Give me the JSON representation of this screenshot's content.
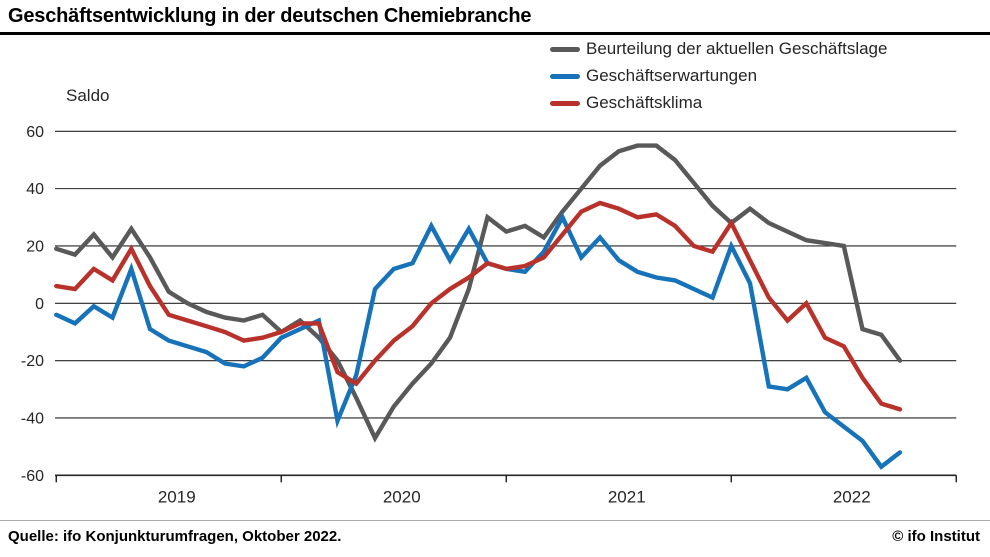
{
  "title": "Geschäftsentwicklung in der deutschen Chemiebranche",
  "ylabel": "Saldo",
  "source": "Quelle: ifo Konjunkturumfragen, Oktober 2022.",
  "credit": "© ifo Institut",
  "colors": {
    "lage": "#595959",
    "erwartungen": "#1673b9",
    "klima": "#b8322b",
    "grid": "#262626",
    "axis": "#1a1a1a"
  },
  "legend": [
    {
      "key": "lage",
      "label": "Beurteilung der aktuellen Geschäftslage",
      "color": "#595959"
    },
    {
      "key": "erwartungen",
      "label": "Geschäftserwartungen",
      "color": "#1673b9"
    },
    {
      "key": "klima",
      "label": "Geschäftsklima",
      "color": "#b8322b"
    }
  ],
  "chart_data": {
    "type": "line",
    "title": "Geschäftsentwicklung in der deutschen Chemiebranche",
    "ylabel": "Saldo",
    "frequency": "monthly",
    "x_start": "2019-01",
    "x_end": "2022-10",
    "ylim": [
      -60,
      60
    ],
    "grid": true,
    "legend_position": "top-right",
    "y_ticks": [
      60,
      40,
      20,
      0,
      -20,
      -40,
      -60
    ],
    "x_tick_years": [
      "2019",
      "2020",
      "2021",
      "2022"
    ],
    "series": [
      {
        "name": "Beurteilung der aktuellen Geschäftslage",
        "color": "#595959",
        "values": [
          19,
          17,
          24,
          16,
          26,
          16,
          4,
          0,
          -3,
          -5,
          -6,
          -4,
          -10,
          -6,
          -12,
          -20,
          -33,
          -47,
          -36,
          -28,
          -21,
          -12,
          5,
          30,
          25,
          27,
          23,
          32,
          40,
          48,
          53,
          55,
          55,
          50,
          42,
          34,
          28,
          33,
          28,
          25,
          22,
          21,
          20,
          -9,
          -11,
          -20
        ]
      },
      {
        "name": "Geschäftserwartungen",
        "color": "#1673b9",
        "values": [
          -4,
          -7,
          -1,
          -5,
          12,
          -9,
          -13,
          -15,
          -17,
          -21,
          -22,
          -19,
          -12,
          -9,
          -6,
          -41,
          -25,
          5,
          12,
          14,
          27,
          15,
          26,
          14,
          12,
          11,
          18,
          30,
          16,
          23,
          15,
          11,
          9,
          8,
          5,
          2,
          20,
          7,
          -29,
          -30,
          -26,
          -38,
          -43,
          -48,
          -57,
          -52
        ]
      },
      {
        "name": "Geschäftsklima",
        "color": "#b8322b",
        "values": [
          6,
          5,
          12,
          8,
          19,
          6,
          -4,
          -6,
          -8,
          -10,
          -13,
          -12,
          -10,
          -7,
          -7,
          -24,
          -28,
          -20,
          -13,
          -8,
          0,
          5,
          9,
          14,
          12,
          13,
          16,
          24,
          32,
          35,
          33,
          30,
          31,
          27,
          20,
          18,
          28,
          15,
          2,
          -6,
          0,
          -12,
          -15,
          -26,
          -35,
          -37
        ]
      }
    ]
  }
}
